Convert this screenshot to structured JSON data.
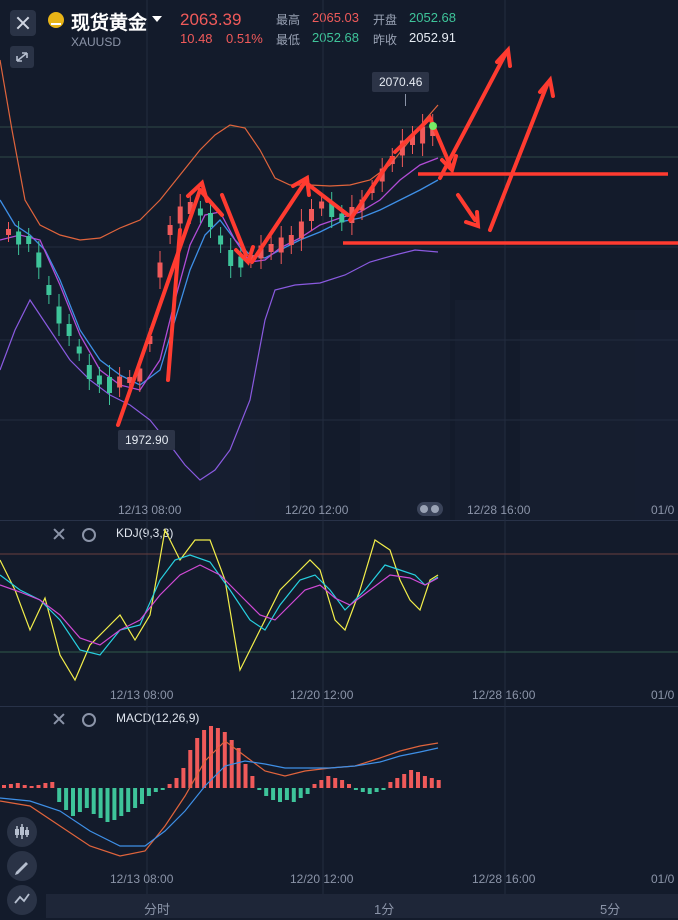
{
  "header": {
    "title": "现货黄金",
    "symbol": "XAUUSD",
    "price": "2063.39",
    "change": "10.48",
    "change_pct": "0.51%",
    "high_label": "最高",
    "high_value": "2065.03",
    "open_label": "开盘",
    "open_value": "2052.68",
    "low_label": "最低",
    "low_value": "2052.68",
    "prev_label": "昨收",
    "prev_value": "2052.91"
  },
  "main_chart": {
    "high_marker": "2070.46",
    "low_marker": "1972.90",
    "x_ticks": [
      "12/13 08:00",
      "12/20 12:00",
      "12/28 16:00",
      "01/0"
    ]
  },
  "kdj_panel": {
    "label": "KDJ(9,3,3)",
    "x_ticks": [
      "12/13 08:00",
      "12/20 12:00",
      "12/28 16:00",
      "01/0"
    ]
  },
  "macd_panel": {
    "label": "MACD(12,26,9)",
    "x_ticks": [
      "12/13 08:00",
      "12/20 12:00",
      "12/28 16:00",
      "01/0"
    ]
  },
  "bottom_tabs": [
    "分时",
    "1分",
    "5分"
  ],
  "icons": {
    "close": "close-icon",
    "expand": "expand-icon",
    "coin": "gold-coin-icon",
    "settings": "gear-icon",
    "candles": "candlestick-icon",
    "draw": "pencil-icon",
    "indicators": "indicator-icon"
  },
  "colors": {
    "background": "#131b2b",
    "up": "#f05a5a",
    "down": "#3ec49a",
    "ma_blue": "#3e8fe6",
    "ma_purple": "#9b5de5",
    "boll": "#e0643c",
    "kdj_k": "#f2ee4a",
    "kdj_d": "#28d0e0",
    "kdj_j": "#d14ad6",
    "annotation": "#ff3b30"
  }
}
